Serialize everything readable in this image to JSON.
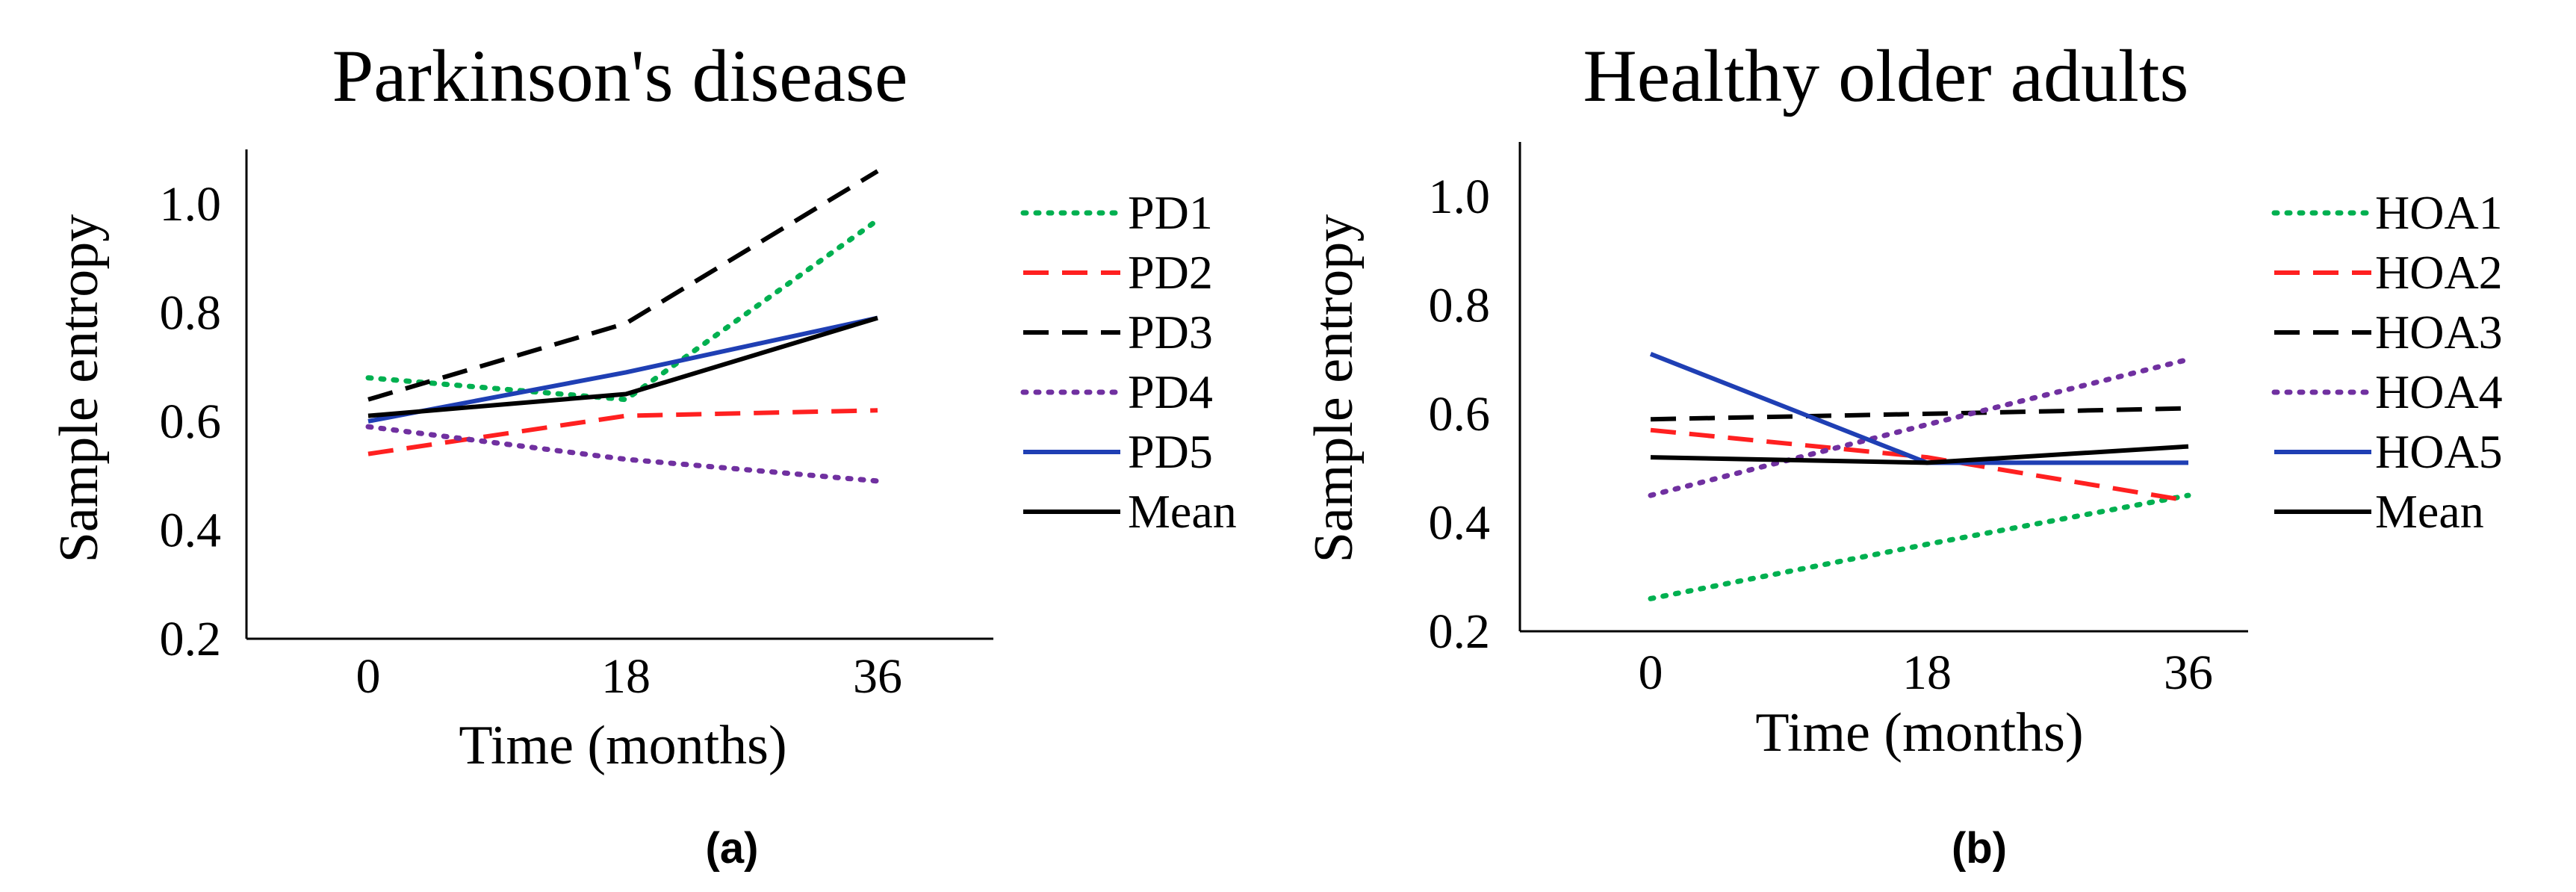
{
  "captions": [
    "(a)",
    "(b)"
  ],
  "chart_data": [
    {
      "type": "line",
      "title": "Parkinson's disease",
      "xlabel": "Time (months)",
      "ylabel": "Sample entropy",
      "x": [
        0,
        18,
        36
      ],
      "x_tick_labels": [
        "0",
        "18",
        "36"
      ],
      "y_ticks": [
        0.2,
        0.4,
        0.6,
        0.8,
        1.0
      ],
      "y_tick_labels": [
        "0.2",
        "0.4",
        "0.6",
        "0.8",
        "1.0"
      ],
      "ylim": [
        0.2,
        1.1
      ],
      "legend_position": "right",
      "series": [
        {
          "name": "PD1",
          "color": "#00b050",
          "style": "dotted",
          "x": [
            0,
            9,
            18,
            36
          ],
          "values": [
            0.68,
            0.66,
            0.64,
            0.97
          ]
        },
        {
          "name": "PD2",
          "color": "#ff2020",
          "style": "dashed",
          "x": [
            0,
            18,
            36
          ],
          "values": [
            0.54,
            0.61,
            0.62
          ]
        },
        {
          "name": "PD3",
          "color": "#000000",
          "style": "dashed",
          "x": [
            0,
            18,
            36
          ],
          "values": [
            0.64,
            0.78,
            1.06
          ]
        },
        {
          "name": "PD4",
          "color": "#7030a0",
          "style": "dotted",
          "x": [
            0,
            18,
            36
          ],
          "values": [
            0.59,
            0.53,
            0.49
          ]
        },
        {
          "name": "PD5",
          "color": "#1f3fb4",
          "style": "solid",
          "x": [
            0,
            18,
            36
          ],
          "values": [
            0.6,
            0.69,
            0.79
          ]
        },
        {
          "name": "Mean",
          "color": "#000000",
          "style": "solid",
          "x": [
            0,
            18,
            36
          ],
          "values": [
            0.61,
            0.65,
            0.79
          ]
        }
      ]
    },
    {
      "type": "line",
      "title": "Healthy older adults",
      "xlabel": "Time (months)",
      "ylabel": "Sample entropy",
      "x": [
        0,
        18,
        36
      ],
      "x_tick_labels": [
        "0",
        "18",
        "36"
      ],
      "y_ticks": [
        0.2,
        0.4,
        0.6,
        0.8,
        1.0
      ],
      "y_tick_labels": [
        "0.2",
        "0.4",
        "0.6",
        "0.8",
        "1.0"
      ],
      "ylim": [
        0.2,
        1.1
      ],
      "legend_position": "right",
      "series": [
        {
          "name": "HOA1",
          "color": "#00b050",
          "style": "dotted",
          "x": [
            0,
            18,
            36
          ],
          "values": [
            0.26,
            0.36,
            0.45
          ]
        },
        {
          "name": "HOA2",
          "color": "#ff2020",
          "style": "dashed",
          "x": [
            0,
            18,
            36
          ],
          "values": [
            0.57,
            0.52,
            0.44
          ]
        },
        {
          "name": "HOA3",
          "color": "#000000",
          "style": "dashed",
          "x": [
            0,
            18,
            36
          ],
          "values": [
            0.59,
            0.6,
            0.61
          ]
        },
        {
          "name": "HOA4",
          "color": "#7030a0",
          "style": "dotted",
          "x": [
            0,
            18,
            36
          ],
          "values": [
            0.45,
            0.58,
            0.7
          ]
        },
        {
          "name": "HOA5",
          "color": "#1f3fb4",
          "style": "solid",
          "x": [
            0,
            18,
            36
          ],
          "values": [
            0.71,
            0.51,
            0.51
          ]
        },
        {
          "name": "Mean",
          "color": "#000000",
          "style": "solid",
          "x": [
            0,
            18,
            36
          ],
          "values": [
            0.52,
            0.51,
            0.54
          ]
        }
      ]
    }
  ]
}
